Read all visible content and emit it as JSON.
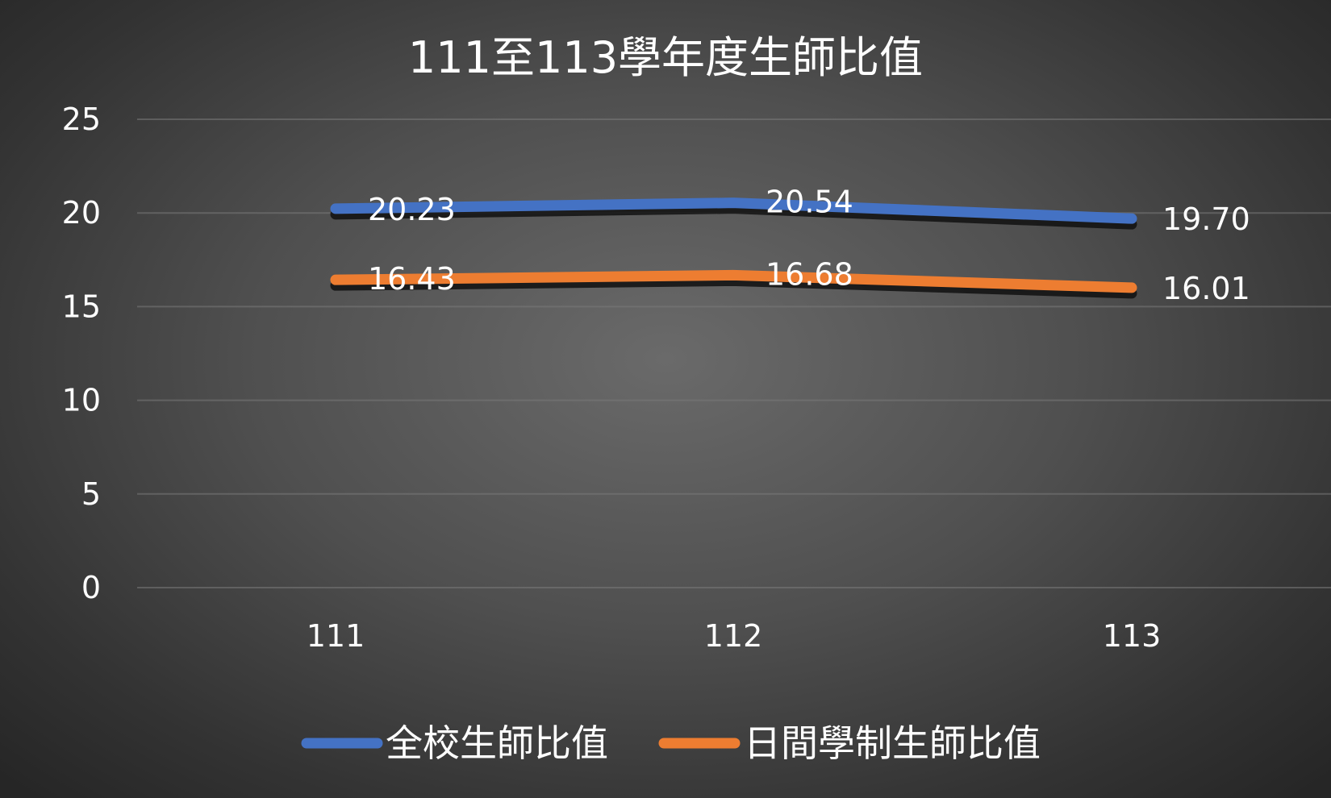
{
  "chart_data": {
    "type": "line",
    "title": "111至113學年度生師比值",
    "categories": [
      "111",
      "112",
      "113"
    ],
    "ylim": [
      0,
      25
    ],
    "yticks": [
      0,
      5,
      10,
      15,
      20,
      25
    ],
    "grid": true,
    "legend_position": "bottom",
    "series": [
      {
        "name": "全校生師比值",
        "values": [
          20.23,
          20.54,
          19.7
        ],
        "labels": [
          "20.23",
          "20.54",
          "19.70"
        ],
        "color": "#4472C4"
      },
      {
        "name": "日間學制生師比值",
        "values": [
          16.43,
          16.68,
          16.01
        ],
        "labels": [
          "16.43",
          "16.68",
          "16.01"
        ],
        "color": "#ED7D31"
      }
    ]
  }
}
